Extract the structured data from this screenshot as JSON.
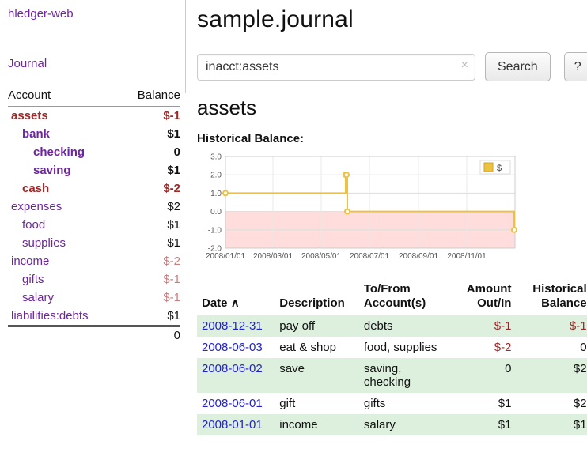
{
  "theme": {
    "link_purple": "#6f24a0",
    "negative_red": "#9e2727",
    "negative_light": "#c87e7e",
    "date_link_blue": "#2222cc",
    "row_green": "#ddefdd"
  },
  "sidebar": {
    "app_title": "hledger-web",
    "journal_label": "Journal",
    "accounts_headers": {
      "account": "Account",
      "balance": "Balance"
    },
    "accounts": [
      {
        "name": "assets",
        "balance": "$-1",
        "depth": 0,
        "bold": true,
        "neg": true
      },
      {
        "name": "bank",
        "balance": "$1",
        "depth": 1,
        "bold": true,
        "neg": false
      },
      {
        "name": "checking",
        "balance": "0",
        "depth": 2,
        "bold": true,
        "neg": false
      },
      {
        "name": "saving",
        "balance": "$1",
        "depth": 2,
        "bold": true,
        "neg": false
      },
      {
        "name": "cash",
        "balance": "$-2",
        "depth": 1,
        "bold": true,
        "neg": true
      },
      {
        "name": "expenses",
        "balance": "$2",
        "depth": 0,
        "bold": false,
        "neg": false
      },
      {
        "name": "food",
        "balance": "$1",
        "depth": 1,
        "bold": false,
        "neg": false
      },
      {
        "name": "supplies",
        "balance": "$1",
        "depth": 1,
        "bold": false,
        "neg": false
      },
      {
        "name": "income",
        "balance": "$-2",
        "depth": 0,
        "bold": false,
        "neg": true
      },
      {
        "name": "gifts",
        "balance": "$-1",
        "depth": 1,
        "bold": false,
        "neg": true
      },
      {
        "name": "salary",
        "balance": "$-1",
        "depth": 1,
        "bold": false,
        "neg": true
      },
      {
        "name": "liabilities:debts",
        "balance": "$1",
        "depth": 0,
        "bold": false,
        "neg": false
      }
    ],
    "accounts_total": "0"
  },
  "main": {
    "page_title": "sample.journal",
    "search": {
      "value": "inacct:assets",
      "clear_icon": "×",
      "button_label": "Search",
      "help_label": "?"
    },
    "account_heading": "assets",
    "chart_label": "Historical Balance:"
  },
  "chart_data": {
    "type": "line",
    "step": true,
    "title": "Historical Balance",
    "legend": "$",
    "legend_position": "top-right",
    "x_range": [
      "2008-01-01",
      "2009-01-01"
    ],
    "x_ticks": [
      "2008/01/01",
      "2008/03/01",
      "2008/05/01",
      "2008/07/01",
      "2008/09/01",
      "2008/11/01"
    ],
    "y_ticks": [
      3,
      2,
      1,
      0,
      -1,
      -2
    ],
    "ylim": [
      -2,
      3
    ],
    "series": [
      {
        "name": "$",
        "color": "#edc240",
        "points": [
          [
            "2008-01-01",
            1
          ],
          [
            "2008-06-01",
            2
          ],
          [
            "2008-06-02",
            2
          ],
          [
            "2008-06-03",
            0
          ],
          [
            "2008-12-31",
            -1
          ]
        ]
      }
    ],
    "negative_region_color": "#ffdddd"
  },
  "register": {
    "headers": {
      "date": "Date",
      "sort_icon": "∧",
      "description": "Description",
      "tofrom_line1": "To/From",
      "tofrom_line2": "Account(s)",
      "amount_line1": "Amount",
      "amount_line2": "Out/In",
      "balance_line1": "Historical",
      "balance_line2": "Balance"
    },
    "rows": [
      {
        "date": "2008-12-31",
        "description": "pay off",
        "accounts": "debts",
        "amount": "$-1",
        "balance": "$-1"
      },
      {
        "date": "2008-06-03",
        "description": "eat & shop",
        "accounts": "food, supplies",
        "amount": "$-2",
        "balance": "0"
      },
      {
        "date": "2008-06-02",
        "description": "save",
        "accounts": "saving, checking",
        "amount": "0",
        "balance": "$2"
      },
      {
        "date": "2008-06-01",
        "description": "gift",
        "accounts": "gifts",
        "amount": "$1",
        "balance": "$2"
      },
      {
        "date": "2008-01-01",
        "description": "income",
        "accounts": "salary",
        "amount": "$1",
        "balance": "$1"
      }
    ]
  }
}
